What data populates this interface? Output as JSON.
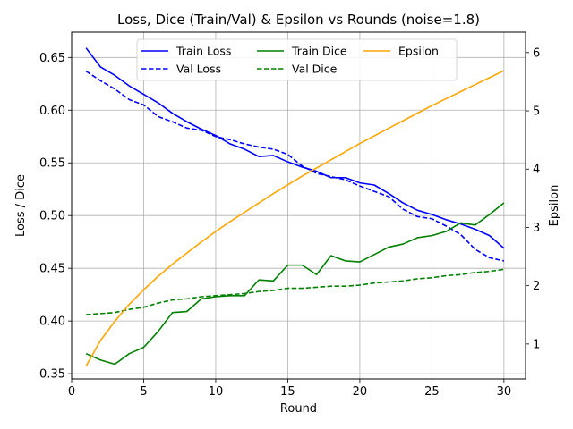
{
  "chart_data": {
    "type": "line",
    "title": "Loss, Dice (Train/Val) & Epsilon vs Rounds (noise=1.8)",
    "xlabel": "Round",
    "ylabel": "Loss / Dice",
    "y2label": "Epsilon",
    "xlim": [
      0,
      31.5
    ],
    "ylim": [
      0.345,
      0.674
    ],
    "y2lim": [
      0.4,
      6.35
    ],
    "xticks": [
      0,
      5,
      10,
      15,
      20,
      25,
      30
    ],
    "yticks": [
      0.35,
      0.4,
      0.45,
      0.5,
      0.55,
      0.6,
      0.65
    ],
    "y2ticks": [
      1,
      2,
      3,
      4,
      5,
      6
    ],
    "grid": true,
    "legend_position": "top-center",
    "x": [
      1,
      2,
      3,
      4,
      5,
      6,
      7,
      8,
      9,
      10,
      11,
      12,
      13,
      14,
      15,
      16,
      17,
      18,
      19,
      20,
      21,
      22,
      23,
      24,
      25,
      26,
      27,
      28,
      29,
      30
    ],
    "series": [
      {
        "name": "Train Loss",
        "axis": "left",
        "color": "#0000ff",
        "style": "solid",
        "values": [
          0.659,
          0.641,
          0.633,
          0.623,
          0.615,
          0.607,
          0.597,
          0.589,
          0.582,
          0.576,
          0.568,
          0.563,
          0.556,
          0.557,
          0.551,
          0.546,
          0.542,
          0.536,
          0.536,
          0.531,
          0.529,
          0.521,
          0.512,
          0.505,
          0.501,
          0.496,
          0.492,
          0.487,
          0.481,
          0.469
        ]
      },
      {
        "name": "Val Loss",
        "axis": "left",
        "color": "#0000ff",
        "style": "dashed",
        "values": [
          0.637,
          0.628,
          0.62,
          0.61,
          0.605,
          0.594,
          0.589,
          0.583,
          0.581,
          0.575,
          0.572,
          0.568,
          0.565,
          0.563,
          0.558,
          0.547,
          0.54,
          0.537,
          0.534,
          0.528,
          0.523,
          0.518,
          0.506,
          0.499,
          0.497,
          0.49,
          0.482,
          0.468,
          0.46,
          0.457
        ]
      },
      {
        "name": "Train Dice",
        "axis": "left",
        "color": "#008000",
        "style": "solid",
        "values": [
          0.369,
          0.363,
          0.359,
          0.369,
          0.375,
          0.39,
          0.408,
          0.409,
          0.421,
          0.423,
          0.424,
          0.424,
          0.439,
          0.438,
          0.453,
          0.453,
          0.444,
          0.462,
          0.457,
          0.456,
          0.463,
          0.47,
          0.473,
          0.479,
          0.481,
          0.485,
          0.493,
          0.491,
          0.501,
          0.512
        ]
      },
      {
        "name": "Val Dice",
        "axis": "left",
        "color": "#008000",
        "style": "dashed",
        "values": [
          0.406,
          0.407,
          0.408,
          0.411,
          0.413,
          0.417,
          0.42,
          0.421,
          0.423,
          0.424,
          0.425,
          0.426,
          0.428,
          0.429,
          0.431,
          0.431,
          0.432,
          0.433,
          0.433,
          0.434,
          0.436,
          0.437,
          0.438,
          0.44,
          0.441,
          0.443,
          0.444,
          0.446,
          0.447,
          0.449
        ]
      },
      {
        "name": "Epsilon",
        "axis": "right",
        "color": "#ffa500",
        "style": "solid",
        "values": [
          0.62,
          1.06,
          1.39,
          1.68,
          1.93,
          2.16,
          2.37,
          2.56,
          2.75,
          2.93,
          3.1,
          3.26,
          3.42,
          3.58,
          3.73,
          3.88,
          4.02,
          4.16,
          4.3,
          4.44,
          4.57,
          4.7,
          4.83,
          4.96,
          5.09,
          5.21,
          5.33,
          5.45,
          5.57,
          5.69
        ]
      }
    ]
  }
}
